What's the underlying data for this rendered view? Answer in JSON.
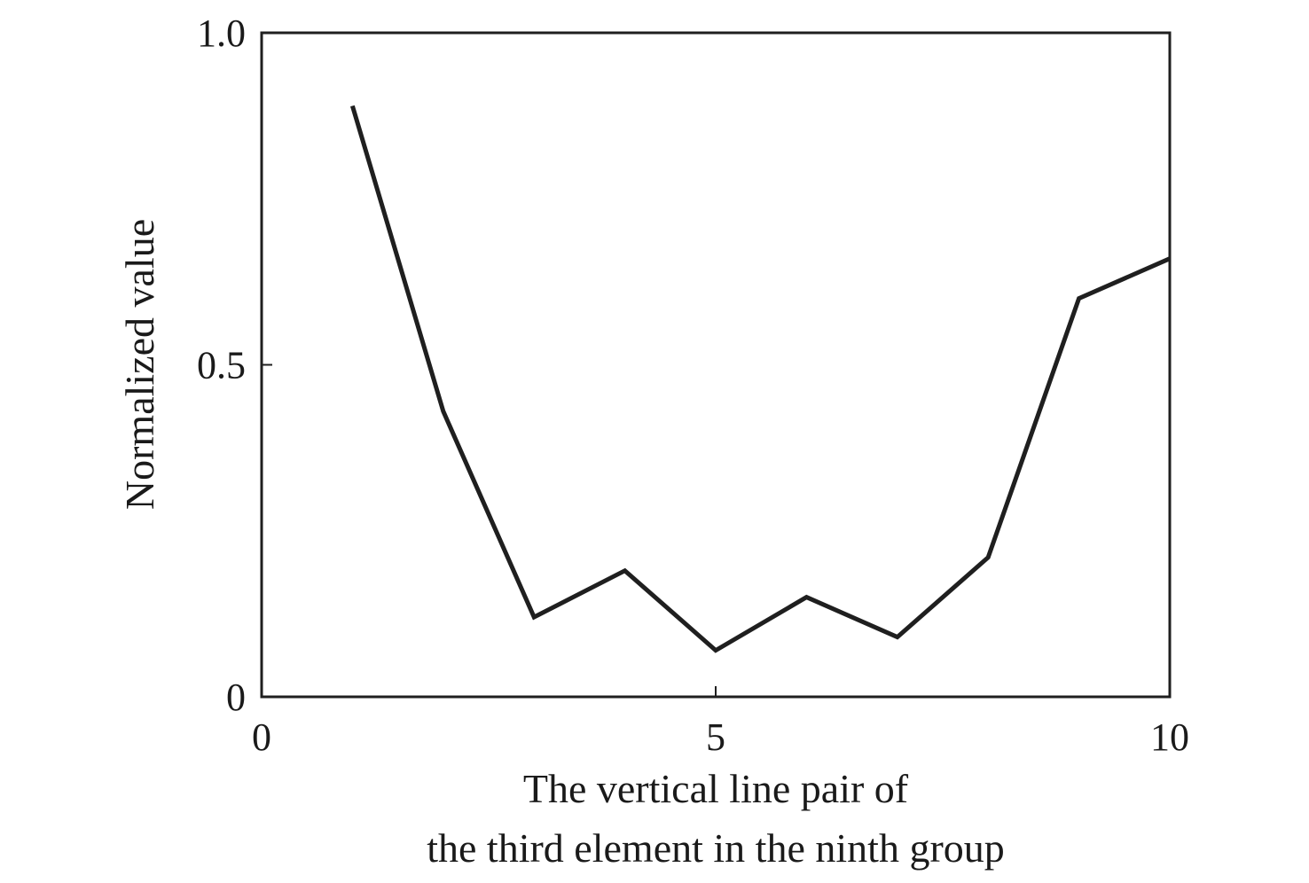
{
  "chart_data": {
    "type": "line",
    "title": "",
    "xlabel_lines": [
      "The vertical line pair of",
      "the third element in the ninth group"
    ],
    "ylabel": "Normalized value",
    "xlim": [
      0,
      10
    ],
    "ylim": [
      0,
      1.0
    ],
    "xticks": [
      0,
      5,
      10
    ],
    "xtick_labels": [
      "0",
      "5",
      "10"
    ],
    "yticks": [
      0,
      0.5,
      1.0
    ],
    "ytick_labels": [
      "0",
      "0.5",
      "1.0"
    ],
    "grid": false,
    "legend": "none",
    "line_color": "#1f1f1f",
    "series": [
      {
        "x": [
          1,
          2,
          3,
          4,
          5,
          6,
          7,
          8,
          9,
          10
        ],
        "y": [
          0.89,
          0.43,
          0.12,
          0.19,
          0.07,
          0.15,
          0.09,
          0.21,
          0.6,
          0.66
        ]
      }
    ]
  }
}
